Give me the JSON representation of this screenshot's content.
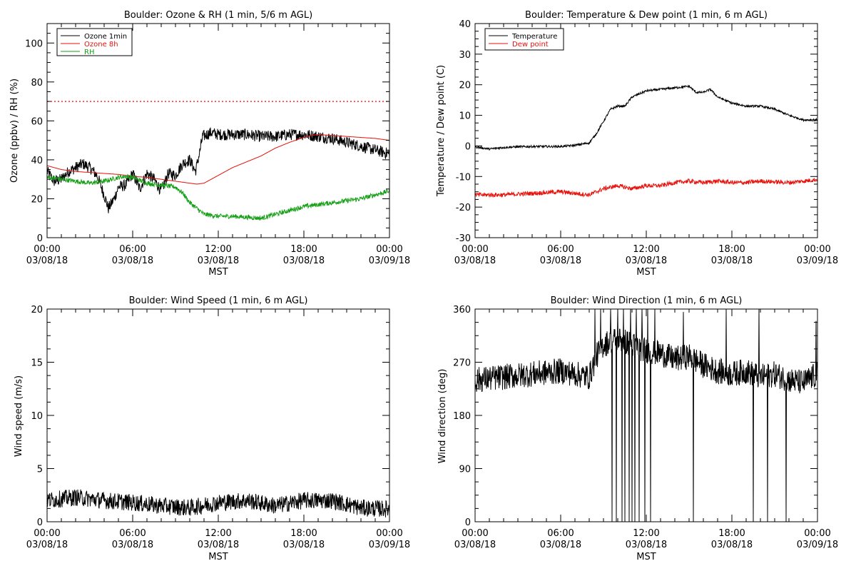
{
  "chart_data": [
    {
      "type": "line",
      "title": "Boulder: Ozone & RH (1 min, 5/6 m AGL)",
      "xlabel": "MST",
      "ylabel": "Ozone (ppbv) / RH (%)",
      "x_range": [
        "03/08/18 00:00",
        "03/09/18 00:00"
      ],
      "ylim": [
        0,
        110
      ],
      "yticks": [
        0,
        20,
        40,
        60,
        80,
        100
      ],
      "xticks": [
        {
          "time": "00:00",
          "date": "03/08/18"
        },
        {
          "time": "06:00",
          "date": "03/08/18"
        },
        {
          "time": "12:00",
          "date": "03/08/18"
        },
        {
          "time": "18:00",
          "date": "03/08/18"
        },
        {
          "time": "00:00",
          "date": "03/09/18"
        }
      ],
      "legend_position": "top-left",
      "grid": false,
      "reference_lines": [
        {
          "y": 70,
          "color": "#ff0000",
          "style": "dotted"
        }
      ],
      "series": [
        {
          "name": "Ozone 1min",
          "color": "#000000",
          "noise": 3,
          "points": [
            [
              0,
              34
            ],
            [
              0.5,
              29
            ],
            [
              1,
              30
            ],
            [
              1.5,
              34
            ],
            [
              2,
              36
            ],
            [
              2.5,
              38
            ],
            [
              3,
              36
            ],
            [
              3.5,
              32
            ],
            [
              4,
              22
            ],
            [
              4.3,
              15
            ],
            [
              4.7,
              20
            ],
            [
              5,
              26
            ],
            [
              5.5,
              27
            ],
            [
              6,
              33
            ],
            [
              6.5,
              25
            ],
            [
              7,
              33
            ],
            [
              7.5,
              30
            ],
            [
              8,
              24
            ],
            [
              8.5,
              33
            ],
            [
              9,
              32
            ],
            [
              9.5,
              38
            ],
            [
              10,
              40
            ],
            [
              10.4,
              34
            ],
            [
              10.7,
              44
            ],
            [
              10.9,
              52
            ],
            [
              11.5,
              54
            ],
            [
              12,
              53
            ],
            [
              13,
              53
            ],
            [
              14,
              53
            ],
            [
              15,
              52
            ],
            [
              16,
              52
            ],
            [
              17,
              53
            ],
            [
              18,
              53
            ],
            [
              19,
              52
            ],
            [
              20,
              51
            ],
            [
              21,
              49
            ],
            [
              22,
              47
            ],
            [
              23,
              45
            ],
            [
              24,
              43
            ]
          ]
        },
        {
          "name": "Ozone 8h",
          "color": "#e8120c",
          "noise": 0,
          "points": [
            [
              0,
              37
            ],
            [
              1,
              35
            ],
            [
              2,
              34
            ],
            [
              3,
              33.5
            ],
            [
              4,
              33
            ],
            [
              5,
              32.5
            ],
            [
              6,
              31.5
            ],
            [
              7,
              31
            ],
            [
              8,
              30
            ],
            [
              9,
              29
            ],
            [
              10,
              28
            ],
            [
              10.5,
              27.5
            ],
            [
              11,
              28
            ],
            [
              12,
              32
            ],
            [
              13,
              36
            ],
            [
              14,
              39
            ],
            [
              15,
              42
            ],
            [
              16,
              46
            ],
            [
              17,
              49
            ],
            [
              18,
              51.5
            ],
            [
              18.5,
              52.5
            ],
            [
              19,
              53
            ],
            [
              20,
              52.5
            ],
            [
              21,
              52
            ],
            [
              22,
              51.5
            ],
            [
              23,
              51
            ],
            [
              24,
              50
            ]
          ]
        },
        {
          "name": "RH",
          "color": "#18a018",
          "noise": 1.2,
          "points": [
            [
              0,
              31
            ],
            [
              1,
              30
            ],
            [
              2,
              29
            ],
            [
              3,
              28
            ],
            [
              4,
              29
            ],
            [
              5,
              31
            ],
            [
              5.5,
              31.5
            ],
            [
              6,
              31
            ],
            [
              7,
              28
            ],
            [
              8,
              27
            ],
            [
              9,
              26
            ],
            [
              9.5,
              23
            ],
            [
              10,
              18
            ],
            [
              10.5,
              15
            ],
            [
              11,
              12
            ],
            [
              12,
              11
            ],
            [
              13,
              11
            ],
            [
              14,
              10.5
            ],
            [
              15,
              10
            ],
            [
              16,
              12
            ],
            [
              17,
              14
            ],
            [
              18,
              16
            ],
            [
              19,
              17
            ],
            [
              20,
              18
            ],
            [
              21,
              19
            ],
            [
              22,
              20
            ],
            [
              23,
              22
            ],
            [
              24,
              24
            ]
          ]
        }
      ]
    },
    {
      "type": "line",
      "title": "Boulder: Temperature & Dew point (1 min, 6 m AGL)",
      "xlabel": "MST",
      "ylabel": "Temperature / Dew point (C)",
      "x_range": [
        "03/08/18 00:00",
        "03/09/18 00:00"
      ],
      "ylim": [
        -30,
        40
      ],
      "yticks": [
        -30,
        -20,
        -10,
        0,
        10,
        20,
        30,
        40
      ],
      "xticks": [
        {
          "time": "00:00",
          "date": "03/08/18"
        },
        {
          "time": "06:00",
          "date": "03/08/18"
        },
        {
          "time": "12:00",
          "date": "03/08/18"
        },
        {
          "time": "18:00",
          "date": "03/08/18"
        },
        {
          "time": "00:00",
          "date": "03/09/18"
        }
      ],
      "legend_position": "top-left",
      "grid": false,
      "series": [
        {
          "name": "Temperature",
          "color": "#000000",
          "noise": 0.35,
          "points": [
            [
              0,
              -0.3
            ],
            [
              1,
              -1
            ],
            [
              2,
              -0.5
            ],
            [
              3,
              -0.3
            ],
            [
              4,
              -0.2
            ],
            [
              5,
              -0.2
            ],
            [
              6,
              -0.2
            ],
            [
              7,
              0.2
            ],
            [
              8,
              1
            ],
            [
              8.5,
              4
            ],
            [
              9,
              8
            ],
            [
              9.5,
              12
            ],
            [
              10,
              13
            ],
            [
              10.5,
              13
            ],
            [
              11,
              16
            ],
            [
              12,
              18
            ],
            [
              13,
              18.5
            ],
            [
              14,
              19
            ],
            [
              15,
              19.5
            ],
            [
              15.5,
              17.5
            ],
            [
              16,
              17.5
            ],
            [
              16.5,
              18.5
            ],
            [
              17,
              16
            ],
            [
              18,
              14
            ],
            [
              19,
              13
            ],
            [
              20,
              13
            ],
            [
              21,
              12
            ],
            [
              22,
              10
            ],
            [
              23,
              8.5
            ],
            [
              24,
              8.5
            ]
          ]
        },
        {
          "name": "Dew point",
          "color": "#e8120c",
          "noise": 0.7,
          "points": [
            [
              0,
              -16
            ],
            [
              2,
              -16
            ],
            [
              4,
              -15.5
            ],
            [
              6,
              -15
            ],
            [
              8,
              -16
            ],
            [
              9,
              -14
            ],
            [
              10,
              -13
            ],
            [
              11,
              -14
            ],
            [
              12,
              -13
            ],
            [
              13,
              -13
            ],
            [
              14,
              -12
            ],
            [
              15,
              -11.5
            ],
            [
              16,
              -12
            ],
            [
              17,
              -11.5
            ],
            [
              18,
              -12
            ],
            [
              19,
              -12
            ],
            [
              20,
              -11.5
            ],
            [
              22,
              -12
            ],
            [
              24,
              -11
            ]
          ]
        }
      ]
    },
    {
      "type": "line",
      "title": "Boulder: Wind Speed (1 min, 6 m AGL)",
      "xlabel": "MST",
      "ylabel": "Wind speed (m/s)",
      "x_range": [
        "03/08/18 00:00",
        "03/09/18 00:00"
      ],
      "ylim": [
        0,
        20
      ],
      "yticks": [
        0,
        5,
        10,
        15,
        20
      ],
      "xticks": [
        {
          "time": "00:00",
          "date": "03/08/18"
        },
        {
          "time": "06:00",
          "date": "03/08/18"
        },
        {
          "time": "12:00",
          "date": "03/08/18"
        },
        {
          "time": "18:00",
          "date": "03/08/18"
        },
        {
          "time": "00:00",
          "date": "03/09/18"
        }
      ],
      "grid": false,
      "series": [
        {
          "name": "",
          "color": "#000000",
          "noise": 0.8,
          "points": [
            [
              0,
              2
            ],
            [
              2,
              2.3
            ],
            [
              4,
              2
            ],
            [
              6,
              1.8
            ],
            [
              8,
              1.5
            ],
            [
              10,
              1.3
            ],
            [
              12,
              1.8
            ],
            [
              14,
              2
            ],
            [
              16,
              1.5
            ],
            [
              18,
              2
            ],
            [
              20,
              2
            ],
            [
              22,
              1.3
            ],
            [
              24,
              1.2
            ]
          ]
        }
      ]
    },
    {
      "type": "line",
      "title": "Boulder: Wind Direction (1 min, 6 m AGL)",
      "xlabel": "MST",
      "ylabel": "Wind direction (deg)",
      "x_range": [
        "03/08/18 00:00",
        "03/09/18 00:00"
      ],
      "ylim": [
        0,
        360
      ],
      "yticks": [
        0,
        90,
        180,
        270,
        360
      ],
      "xticks": [
        {
          "time": "00:00",
          "date": "03/08/18"
        },
        {
          "time": "06:00",
          "date": "03/08/18"
        },
        {
          "time": "12:00",
          "date": "03/08/18"
        },
        {
          "time": "18:00",
          "date": "03/08/18"
        },
        {
          "time": "00:00",
          "date": "03/09/18"
        }
      ],
      "grid": false,
      "series": [
        {
          "name": "",
          "color": "#000000",
          "noise": 22,
          "points": [
            [
              0,
              240
            ],
            [
              2,
              245
            ],
            [
              4,
              250
            ],
            [
              6,
              255
            ],
            [
              7,
              250
            ],
            [
              8,
              245
            ],
            [
              8.5,
              280
            ],
            [
              9,
              300
            ],
            [
              10,
              310
            ],
            [
              11,
              300
            ],
            [
              12,
              290
            ],
            [
              13,
              285
            ],
            [
              14,
              275
            ],
            [
              15,
              280
            ],
            [
              16,
              265
            ],
            [
              17,
              255
            ],
            [
              18,
              250
            ],
            [
              19,
              255
            ],
            [
              20,
              245
            ],
            [
              21,
              250
            ],
            [
              22,
              240
            ],
            [
              23,
              235
            ],
            [
              24,
              250
            ]
          ],
          "spikes": [
            [
              9.6,
              0
            ],
            [
              9.9,
              0
            ],
            [
              10.3,
              0
            ],
            [
              10.5,
              0
            ],
            [
              10.8,
              0
            ],
            [
              11.0,
              0
            ],
            [
              11.2,
              0
            ],
            [
              11.5,
              0
            ],
            [
              11.9,
              0
            ],
            [
              12.3,
              0
            ],
            [
              15.3,
              0
            ],
            [
              19.5,
              0
            ],
            [
              20.5,
              0
            ],
            [
              21.8,
              0
            ],
            [
              8.4,
              360
            ],
            [
              8.8,
              360
            ],
            [
              9.5,
              360
            ],
            [
              10.0,
              360
            ],
            [
              10.4,
              360
            ],
            [
              10.9,
              360
            ],
            [
              11.3,
              360
            ],
            [
              11.7,
              360
            ],
            [
              12.1,
              360
            ],
            [
              12.6,
              360
            ],
            [
              14.6,
              355
            ],
            [
              17.6,
              360
            ],
            [
              19.9,
              360
            ],
            [
              23.9,
              340
            ]
          ]
        }
      ]
    }
  ]
}
